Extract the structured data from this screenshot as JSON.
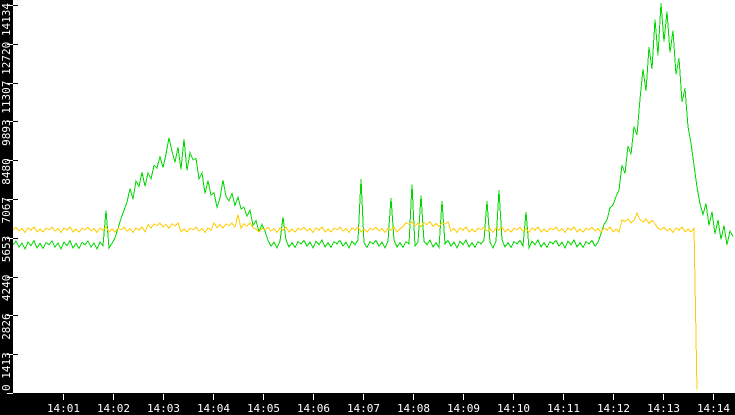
{
  "window": {
    "background": "#000000"
  },
  "chart_data": {
    "type": "line",
    "title": "",
    "plot_background": "#ffffff",
    "axis_text_color": "#ffffff",
    "grid": false,
    "legend": "none",
    "ylim": [
      0,
      14316
    ],
    "xlim_minutes": [
      0,
      14.44
    ],
    "y_axis": {
      "ticks": [
        {
          "value": 0,
          "label": "0"
        },
        {
          "value": 1413.4,
          "label": "1413"
        },
        {
          "value": 2826.8,
          "label": "2826"
        },
        {
          "value": 4240.2,
          "label": "4240"
        },
        {
          "value": 5653.6,
          "label": "5653"
        },
        {
          "value": 7067.0,
          "label": "7067"
        },
        {
          "value": 8480.4,
          "label": "8480"
        },
        {
          "value": 9893.8,
          "label": "9893"
        },
        {
          "value": 11307.2,
          "label": "11307"
        },
        {
          "value": 12720.6,
          "label": "12720"
        },
        {
          "value": 14134.0,
          "label": "14134"
        }
      ]
    },
    "x_axis": {
      "ticks": [
        {
          "minute": 1,
          "label": "14:01"
        },
        {
          "minute": 2,
          "label": "14:02"
        },
        {
          "minute": 3,
          "label": "14:03"
        },
        {
          "minute": 4,
          "label": "14:04"
        },
        {
          "minute": 5,
          "label": "14:05"
        },
        {
          "minute": 6,
          "label": "14:06"
        },
        {
          "minute": 7,
          "label": "14:07"
        },
        {
          "minute": 8,
          "label": "14:08"
        },
        {
          "minute": 9,
          "label": "14:09"
        },
        {
          "minute": 10,
          "label": "14:10"
        },
        {
          "minute": 11,
          "label": "14:11"
        },
        {
          "minute": 12,
          "label": "14:12"
        },
        {
          "minute": 13,
          "label": "14:13"
        },
        {
          "minute": 14,
          "label": "14:14"
        }
      ]
    },
    "series": [
      {
        "name": "green-series",
        "color": "#00d800",
        "x_start_minute": 0,
        "x_step_minutes": 0.06,
        "values": [
          5400,
          5536,
          5315,
          5468,
          5247,
          5502,
          5366,
          5553,
          5281,
          5451,
          5264,
          5485,
          5400,
          5536,
          5315,
          5468,
          5247,
          5502,
          5366,
          5553,
          5281,
          5451,
          5264,
          5485,
          5400,
          5536,
          5315,
          5468,
          5247,
          5502,
          5366,
          6650,
          5281,
          5451,
          5650,
          6000,
          6350,
          6650,
          6950,
          7452,
          7058,
          7728,
          7524,
          8042,
          7534,
          8014,
          7796,
          8290,
          8200,
          8604,
          8210,
          8700,
          9300,
          8800,
          8400,
          8950,
          8150,
          9250,
          8100,
          8750,
          8500,
          8544,
          7805,
          8012,
          7273,
          7738,
          7214,
          7297,
          6769,
          7099,
          7750,
          7165,
          7000,
          7264,
          6835,
          7132,
          6703,
          6768,
          6444,
          6652,
          6104,
          6284,
          5876,
          6140,
          5900,
          5558,
          5350,
          5494,
          5286,
          5526,
          6400,
          5574,
          5318,
          5478,
          5302,
          5510,
          5430,
          5558,
          5350,
          5494,
          5286,
          5526,
          5398,
          5574,
          5318,
          5478,
          5302,
          5510,
          5430,
          5558,
          5350,
          5494,
          5286,
          5526,
          5398,
          5574,
          7800,
          5478,
          5302,
          5510,
          5430,
          5558,
          5350,
          5494,
          5286,
          5526,
          7100,
          5574,
          5318,
          5478,
          5302,
          5510,
          5430,
          7600,
          5350,
          5494,
          7200,
          5526,
          5398,
          5574,
          5318,
          5478,
          5302,
          7000,
          5430,
          5558,
          5350,
          5494,
          5286,
          5526,
          5398,
          5574,
          5318,
          5478,
          5302,
          5510,
          5430,
          5558,
          7000,
          5494,
          5286,
          5526,
          7400,
          5574,
          5318,
          5478,
          5302,
          5510,
          5430,
          5558,
          5350,
          6600,
          5286,
          5526,
          5398,
          5574,
          5318,
          5478,
          5302,
          5510,
          5430,
          5558,
          5350,
          5494,
          5286,
          5526,
          5398,
          5574,
          5318,
          5478,
          5302,
          5510,
          5430,
          5558,
          5350,
          5494,
          5800,
          6150,
          6300,
          6750,
          6850,
          7150,
          7400,
          8300,
          8000,
          9000,
          8700,
          9700,
          9400,
          10700,
          11800,
          11000,
          12600,
          11800,
          13600,
          12300,
          14200,
          12800,
          13900,
          12400,
          13200,
          11600,
          12200,
          10600,
          11100,
          9700,
          9100,
          8300,
          7500,
          6900,
          6500,
          6900,
          6100,
          6600,
          5800,
          6300,
          5600,
          6100,
          5400,
          5900,
          5700
        ]
      },
      {
        "name": "yellow-series",
        "color": "#ffcc00",
        "x_start_minute": 0,
        "x_step_minutes": 0.06,
        "values": [
          5950,
          6038,
          5895,
          5994,
          5851,
          6016,
          5928,
          6049,
          5873,
          5983,
          5862,
          6005,
          5950,
          6038,
          5895,
          5994,
          5851,
          6016,
          5928,
          6049,
          5873,
          5983,
          5862,
          6005,
          5950,
          6038,
          5895,
          5994,
          5851,
          6016,
          5928,
          6049,
          5873,
          5983,
          5862,
          6005,
          5950,
          6038,
          5895,
          5994,
          5851,
          6016,
          5928,
          6049,
          5873,
          6133,
          6012,
          6155,
          6100,
          6188,
          6045,
          6144,
          6001,
          6166,
          6078,
          6199,
          5873,
          5983,
          5862,
          6005,
          5950,
          6038,
          5895,
          5994,
          5851,
          6016,
          5928,
          6199,
          6023,
          6133,
          6012,
          6155,
          6100,
          6188,
          6045,
          6500,
          6001,
          6166,
          6078,
          6199,
          6023,
          5983,
          5862,
          6005,
          5950,
          6038,
          5895,
          5994,
          5851,
          6016,
          5928,
          6049,
          5873,
          5983,
          5862,
          6005,
          5950,
          6038,
          5895,
          5994,
          5851,
          6016,
          5928,
          6049,
          5873,
          5983,
          5862,
          6005,
          5950,
          6038,
          5895,
          5994,
          5851,
          6016,
          5928,
          6049,
          5873,
          5983,
          5862,
          6005,
          5950,
          6038,
          5895,
          5994,
          5851,
          6016,
          5928,
          6049,
          5873,
          5983,
          6062,
          6205,
          6150,
          6238,
          6095,
          6194,
          6051,
          6216,
          6128,
          6249,
          6073,
          6183,
          6062,
          6205,
          6150,
          6238,
          5895,
          5994,
          5851,
          6016,
          5928,
          6049,
          5873,
          5983,
          5862,
          6005,
          5950,
          6038,
          5895,
          5994,
          5851,
          6016,
          5928,
          6049,
          5873,
          5983,
          5862,
          6005,
          5950,
          6038,
          5895,
          5994,
          5851,
          6016,
          5928,
          6049,
          5873,
          5983,
          5862,
          6005,
          5950,
          6038,
          5895,
          5994,
          5851,
          6016,
          5928,
          6049,
          5873,
          5983,
          5862,
          6005,
          5950,
          6038,
          5895,
          5994,
          5851,
          6016,
          5928,
          6049,
          5873,
          5983,
          5862,
          6305,
          6250,
          6338,
          6195,
          6294,
          6550,
          6316,
          6228,
          6349,
          6173,
          6283,
          6162,
          6005,
          5950,
          6038,
          5895,
          5994,
          5851,
          6016,
          5928,
          6049,
          5873,
          5983,
          5862,
          6005,
          120
        ]
      }
    ]
  }
}
